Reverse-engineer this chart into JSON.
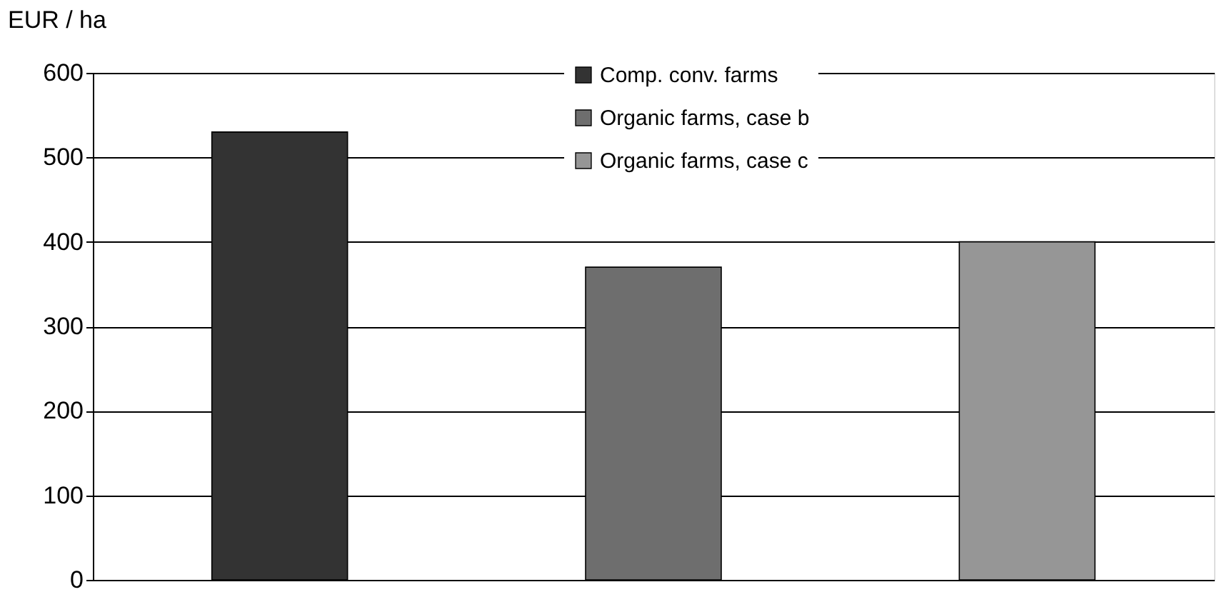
{
  "chart_data": {
    "type": "bar",
    "ylabel": "EUR / ha",
    "categories": [
      null,
      null,
      null
    ],
    "series": [
      {
        "name": "Comp. conv. farms",
        "color": "#333333",
        "values": [
          530,
          null,
          null
        ]
      },
      {
        "name": "Organic farms, case b",
        "color": "#6e6e6e",
        "values": [
          null,
          370,
          null
        ]
      },
      {
        "name": "Organic farms, case c",
        "color": "#969696",
        "values": [
          null,
          null,
          400
        ]
      }
    ],
    "ylim": [
      0,
      600
    ],
    "yticks": [
      0,
      100,
      200,
      300,
      400,
      500,
      600
    ],
    "grid": "y",
    "legend": "top",
    "tick_labels": "y"
  }
}
